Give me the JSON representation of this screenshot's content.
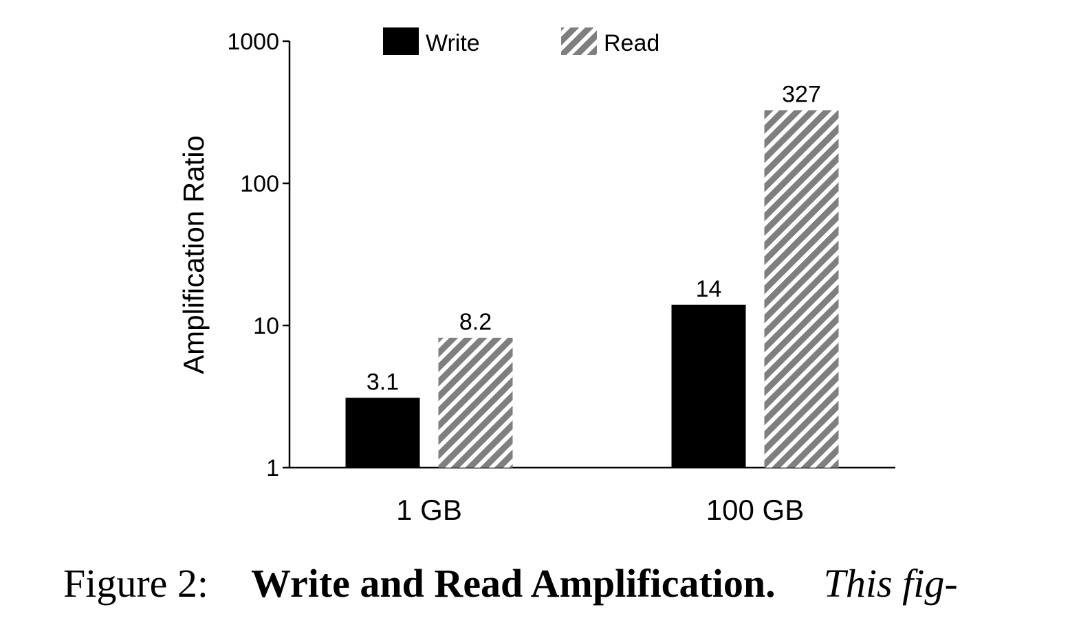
{
  "chart_data": {
    "type": "bar",
    "categories": [
      "1 GB",
      "100 GB"
    ],
    "series": [
      {
        "name": "Write",
        "values": [
          3.1,
          14
        ],
        "labels": [
          "3.1",
          "14"
        ],
        "color": "#000000",
        "pattern": "solid"
      },
      {
        "name": "Read",
        "values": [
          8.2,
          327
        ],
        "labels": [
          "8.2",
          "327"
        ],
        "color": "#7f7f7f",
        "pattern": "diagonal-hatch"
      }
    ],
    "xlabel": "",
    "ylabel": "Amplification Ratio",
    "yscale": "log",
    "ylim": [
      1,
      1000
    ],
    "yticks": [
      1,
      10,
      100,
      1000
    ],
    "ytick_labels": [
      "1",
      "10",
      "100",
      "1000"
    ],
    "legend_position": "top",
    "grid": false
  },
  "caption": {
    "label": "Figure 2:",
    "title": "Write and Read Amplification.",
    "rest": "This fig-"
  }
}
